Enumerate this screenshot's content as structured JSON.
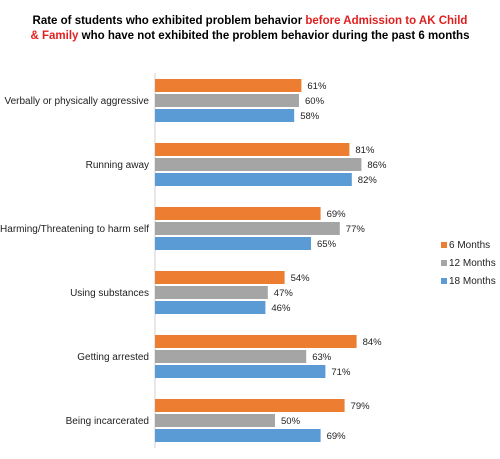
{
  "title": {
    "part1": "Rate of students who exhibited problem behavior ",
    "highlight": "before Admission to AK Child & Family",
    "part2": " who have not exhibited the problem behavior during the past 6 months",
    "highlight_color": "#e02020"
  },
  "chart_data": {
    "type": "bar",
    "orientation": "horizontal",
    "categories": [
      "Verbally or physically aggressive",
      "Running away",
      "Harming/Threatening to harm self",
      "Using substances",
      "Getting arrested",
      "Being incarcerated"
    ],
    "series": [
      {
        "name": "6 Months",
        "color": "#ed7d31",
        "values": [
          61,
          81,
          69,
          54,
          84,
          79
        ]
      },
      {
        "name": "12 Months",
        "color": "#a5a5a5",
        "values": [
          60,
          86,
          77,
          47,
          63,
          50
        ]
      },
      {
        "name": "18 Months",
        "color": "#5b9bd5",
        "values": [
          58,
          82,
          65,
          46,
          71,
          69
        ]
      }
    ],
    "value_suffix": "%",
    "xlim": [
      0,
      100
    ],
    "grid": false,
    "legend": "right"
  }
}
